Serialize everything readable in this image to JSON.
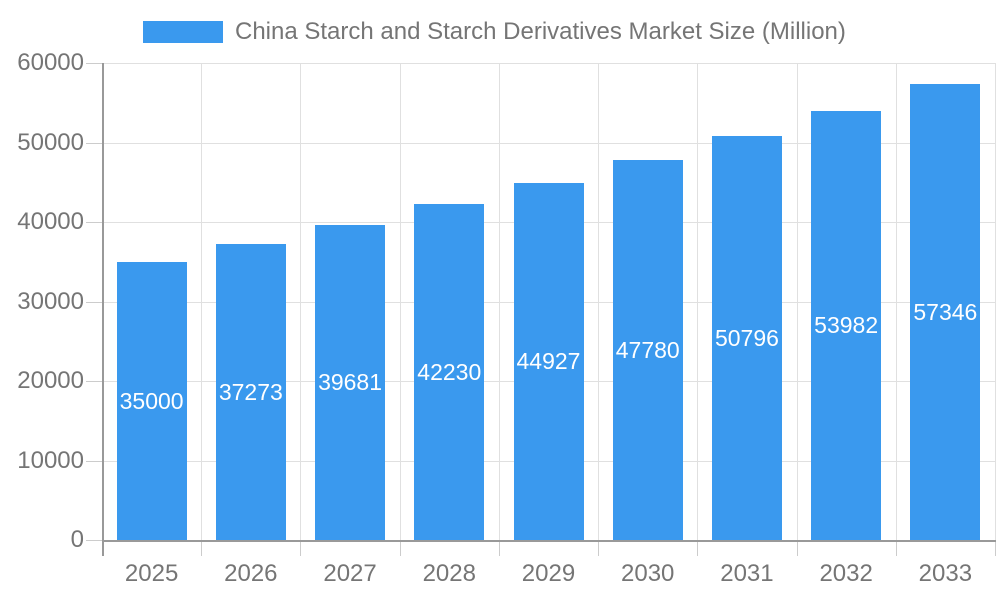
{
  "legend": {
    "label": "China Starch and Starch Derivatives Market Size (Million)"
  },
  "chart_data": {
    "type": "bar",
    "title": "China Starch and Starch Derivatives Market Size (Million)",
    "categories": [
      "2025",
      "2026",
      "2027",
      "2028",
      "2029",
      "2030",
      "2031",
      "2032",
      "2033"
    ],
    "values": [
      35000,
      37273,
      39681,
      42230,
      44927,
      47780,
      50796,
      53982,
      57346
    ],
    "xlabel": "",
    "ylabel": "",
    "ylim": [
      0,
      60000
    ],
    "yticks": [
      0,
      10000,
      20000,
      30000,
      40000,
      50000,
      60000
    ],
    "grid": true,
    "legend_position": "top",
    "value_labels": "inside-center",
    "colors": {
      "bar": "#3A99EE",
      "axis_line": "#999999",
      "grid_line": "#e0e0e0",
      "tick_line": "#cccccc",
      "axis_text": "#757575",
      "value_text": "#ffffff",
      "background": "#ffffff"
    }
  }
}
